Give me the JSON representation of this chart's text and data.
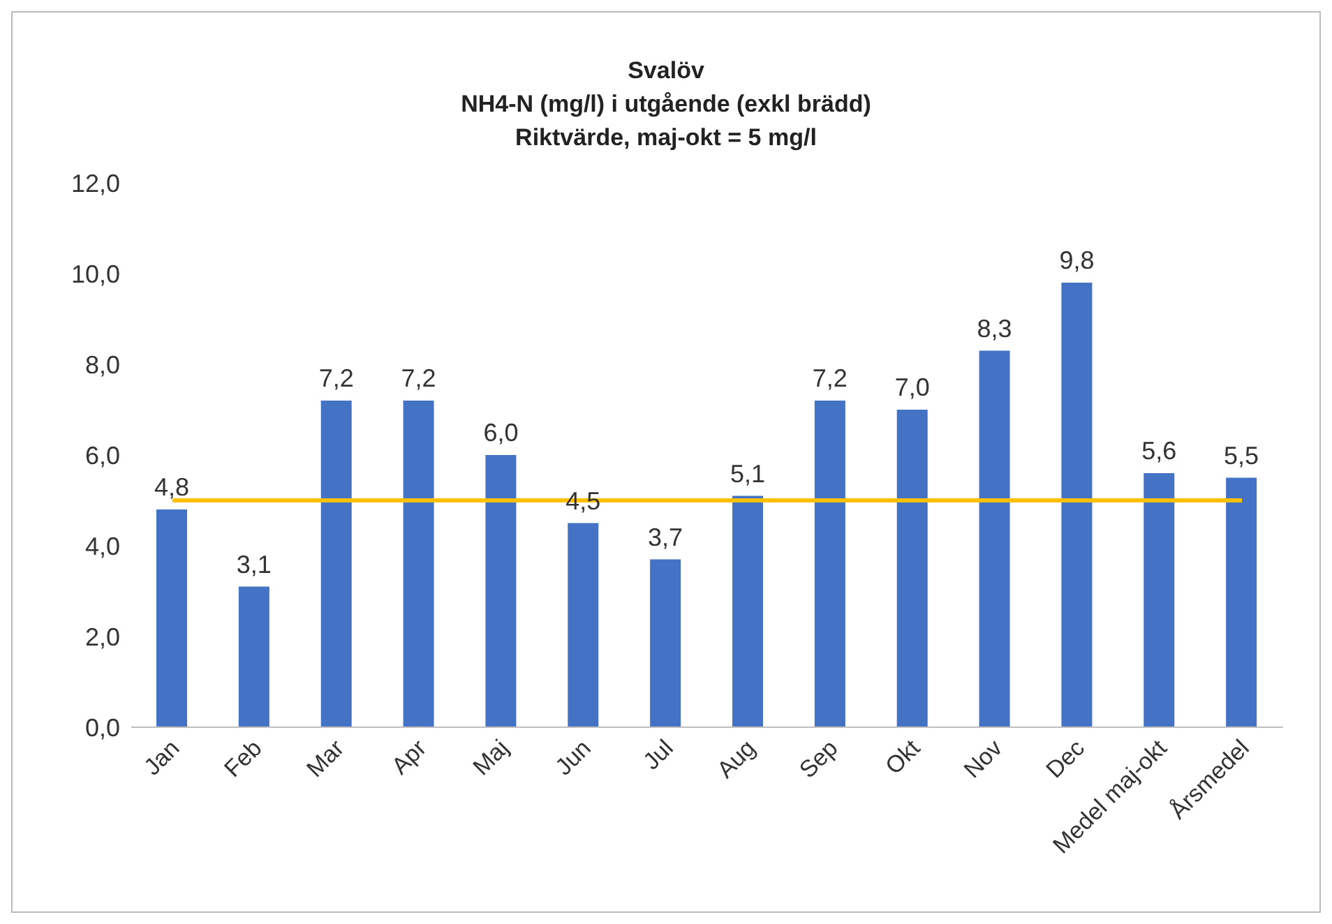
{
  "chart_data": {
    "type": "bar",
    "title": "Svalöv",
    "subtitle": "NH4-N (mg/l) i utgående (exkl brädd)\nRiktvärde, maj-okt = 5 mg/l",
    "categories": [
      "Jan",
      "Feb",
      "Mar",
      "Apr",
      "Maj",
      "Jun",
      "Jul",
      "Aug",
      "Sep",
      "Okt",
      "Nov",
      "Dec",
      "Medel maj-okt",
      "Årsmedel"
    ],
    "values": [
      4.8,
      3.1,
      7.2,
      7.2,
      6.0,
      4.5,
      3.7,
      5.1,
      7.2,
      7.0,
      8.3,
      9.8,
      5.6,
      5.5
    ],
    "value_labels": [
      "4,8",
      "3,1",
      "7,2",
      "7,2",
      "6,0",
      "4,5",
      "3,7",
      "5,1",
      "7,2",
      "7,0",
      "8,3",
      "9,8",
      "5,6",
      "5,5"
    ],
    "color": "#4472c4",
    "ylim": [
      0,
      12
    ],
    "yticks": [
      {
        "value": 0,
        "label": "0,0"
      },
      {
        "value": 2,
        "label": "2,0"
      },
      {
        "value": 4,
        "label": "4,0"
      },
      {
        "value": 6,
        "label": "6,0"
      },
      {
        "value": 8,
        "label": "8,0"
      },
      {
        "value": 10,
        "label": "10,0"
      },
      {
        "value": 12,
        "label": "12,0"
      }
    ],
    "ref_lines": [
      {
        "axis": "y",
        "value": 5,
        "color": "#ffc000"
      }
    ],
    "grid": false,
    "legend": false
  }
}
